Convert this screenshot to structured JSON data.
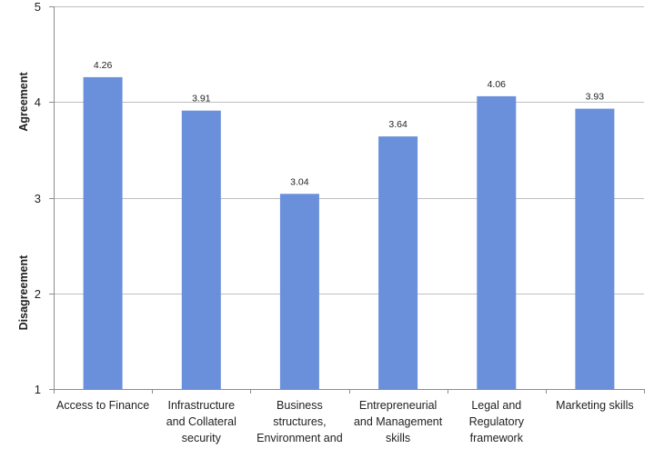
{
  "chart_data": {
    "type": "bar",
    "categories": [
      [
        "Access to Finance"
      ],
      [
        "Infrastructure",
        "and Collateral",
        "security"
      ],
      [
        "Business",
        "structures,",
        "Environment and"
      ],
      [
        "Entrepreneurial",
        "and Management",
        "skills"
      ],
      [
        "Legal and",
        "Regulatory",
        "framework"
      ],
      [
        "Marketing skills"
      ]
    ],
    "values": [
      4.26,
      3.91,
      3.04,
      3.64,
      4.06,
      3.93
    ],
    "data_labels": [
      "4.26",
      "3.91",
      "3.04",
      "3.64",
      "4.06",
      "3.93"
    ],
    "ylim": [
      1,
      5
    ],
    "yticks": [
      "1",
      "2",
      "3",
      "4",
      "5"
    ],
    "side_labels": {
      "upper": "Agreement",
      "lower": "Disagreement"
    },
    "grid": true,
    "legend": "none",
    "colors": {
      "bar": "#6a8fdb",
      "grid": "#bfbfbf",
      "axis": "#8c8c8c"
    }
  }
}
